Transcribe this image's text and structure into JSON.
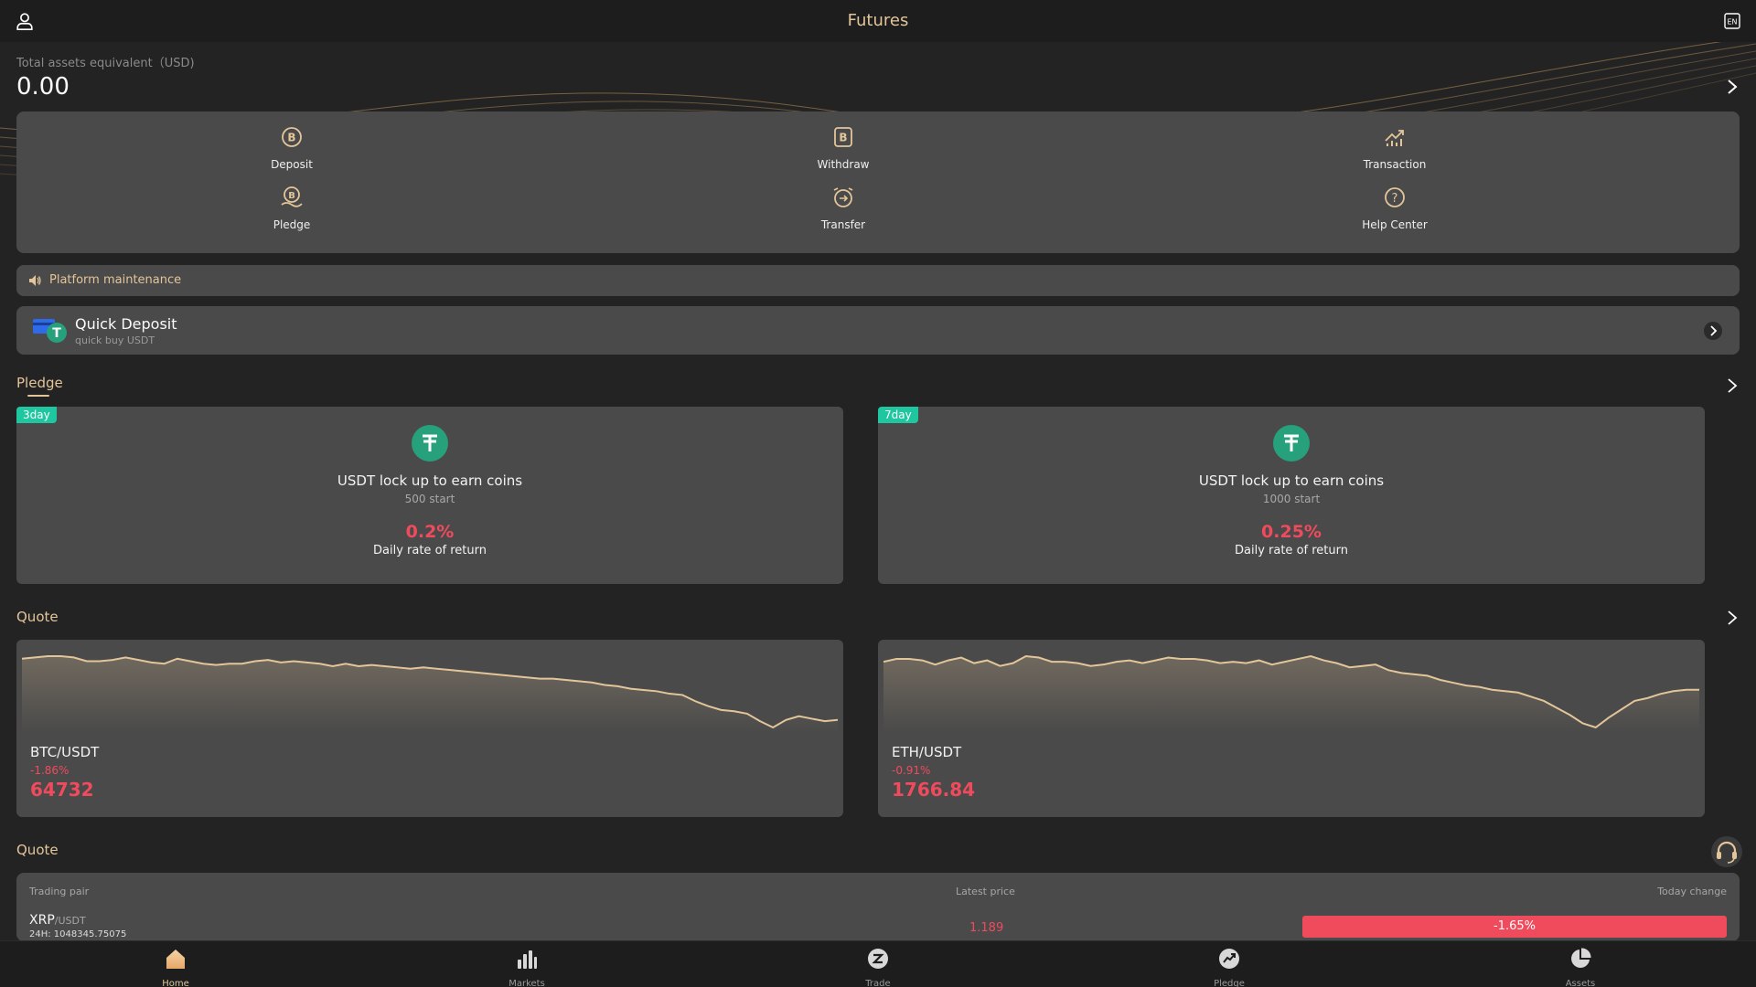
{
  "header": {
    "title": "Futures",
    "lang_badge": "EN"
  },
  "assets": {
    "label": "Total assets equivalent（USD)",
    "value": "0.00"
  },
  "actions": [
    {
      "label": "Deposit",
      "icon": "deposit-icon"
    },
    {
      "label": "Withdraw",
      "icon": "withdraw-icon"
    },
    {
      "label": "Transaction",
      "icon": "transaction-icon"
    },
    {
      "label": "Pledge",
      "icon": "pledge-icon"
    },
    {
      "label": "Transfer",
      "icon": "transfer-icon"
    },
    {
      "label": "Help Center",
      "icon": "help-icon"
    }
  ],
  "notice": {
    "text": "Platform maintenance"
  },
  "quick_deposit": {
    "title": "Quick Deposit",
    "subtitle": "quick buy USDT"
  },
  "pledge": {
    "section_title": "Pledge",
    "cards": [
      {
        "tag": "3day",
        "name": "USDT lock up to earn coins",
        "start": "500 start",
        "rate": "0.2%",
        "rate_label": "Daily rate of return"
      },
      {
        "tag": "7day",
        "name": "USDT lock up to earn coins",
        "start": "1000 start",
        "rate": "0.25%",
        "rate_label": "Daily rate of return"
      }
    ]
  },
  "quote": {
    "section_title": "Quote",
    "cards": [
      {
        "pair": "BTC/USDT",
        "change": "-1.86%",
        "price": "64732"
      },
      {
        "pair": "ETH/USDT",
        "change": "-0.91%",
        "price": "1766.84"
      }
    ]
  },
  "quote_table": {
    "section_title": "Quote",
    "headers": {
      "pair": "Trading pair",
      "price": "Latest price",
      "change": "Today change"
    },
    "rows": [
      {
        "base": "XRP",
        "quote": "/USDT",
        "volume": "24H: 1048345.75075",
        "price": "1.189",
        "change": "-1.65%"
      }
    ]
  },
  "nav": [
    {
      "label": "Home",
      "icon": "home-icon",
      "active": true
    },
    {
      "label": "Markets",
      "icon": "markets-icon",
      "active": false
    },
    {
      "label": "Trade",
      "icon": "trade-icon",
      "active": false
    },
    {
      "label": "Pledge",
      "icon": "pledge-nav-icon",
      "active": false
    },
    {
      "label": "Assets",
      "icon": "assets-icon",
      "active": false
    }
  ],
  "colors": {
    "accent": "#e3c59a",
    "down": "#f04a5d",
    "tag": "#1ec7a0",
    "panel": "#4a4a4a",
    "background": "#232323"
  },
  "sparklines": {
    "btc": [
      62,
      63,
      64,
      64,
      63,
      60,
      60,
      61,
      63,
      61,
      59,
      58,
      62,
      60,
      58,
      57,
      58,
      58,
      60,
      61,
      59,
      60,
      59,
      58,
      56,
      58,
      56,
      57,
      56,
      55,
      54,
      55,
      54,
      53,
      52,
      51,
      50,
      49,
      48,
      47,
      46,
      46,
      45,
      44,
      43,
      41,
      40,
      38,
      37,
      36,
      34,
      33,
      28,
      24,
      21,
      20,
      18,
      12,
      7,
      13,
      16,
      14,
      12,
      13
    ],
    "eth": [
      58,
      60,
      60,
      59,
      56,
      59,
      61,
      57,
      59,
      55,
      57,
      62,
      61,
      58,
      58,
      57,
      55,
      56,
      58,
      59,
      57,
      59,
      61,
      60,
      60,
      59,
      57,
      58,
      57,
      59,
      56,
      58,
      60,
      62,
      59,
      57,
      54,
      55,
      56,
      52,
      50,
      49,
      48,
      45,
      43,
      41,
      40,
      38,
      37,
      36,
      33,
      30,
      25,
      20,
      14,
      11,
      18,
      24,
      30,
      32,
      35,
      37,
      38,
      38
    ]
  }
}
